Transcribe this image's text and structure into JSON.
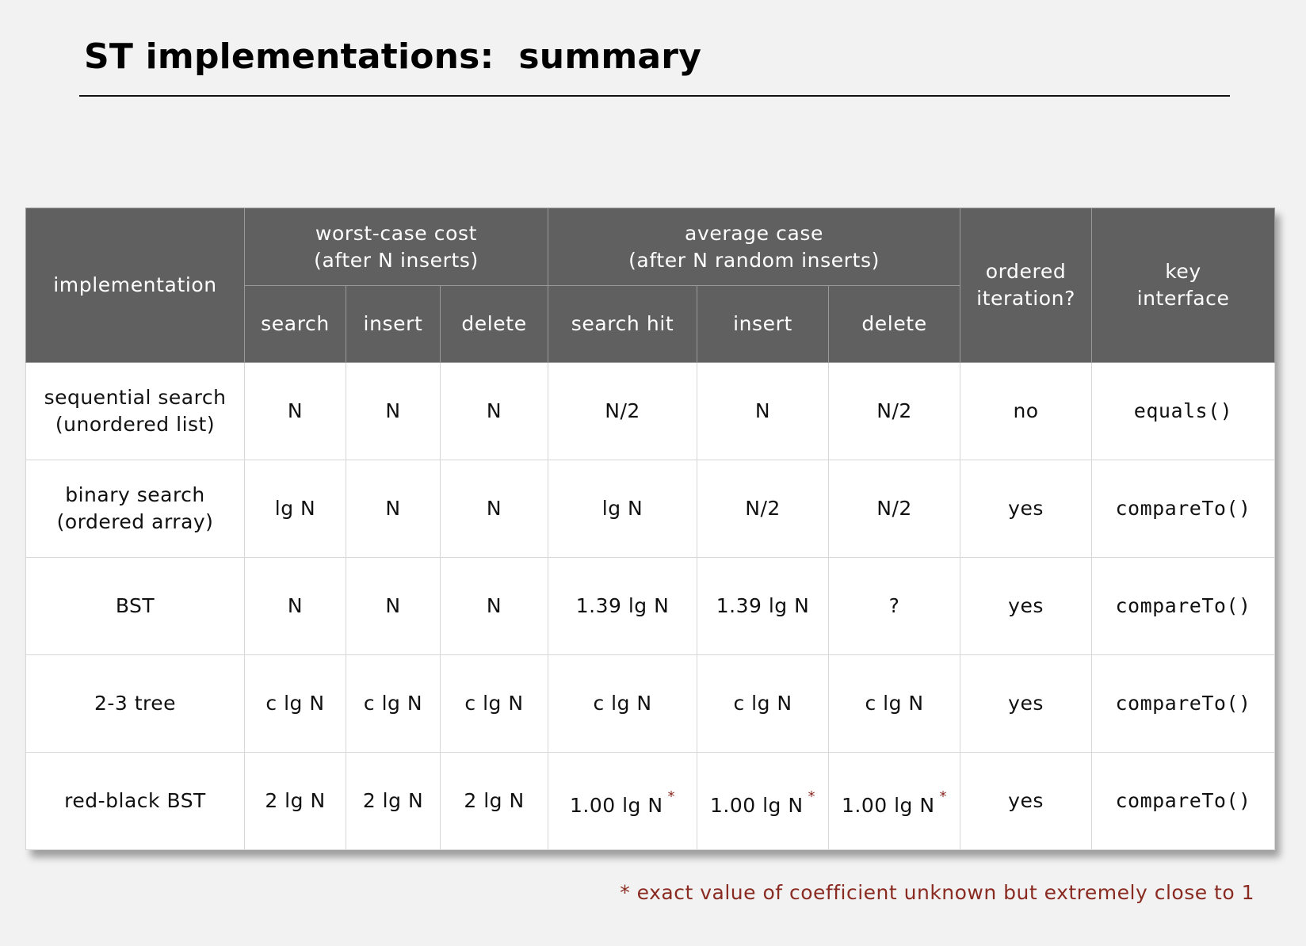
{
  "title": "ST implementations:  summary",
  "table": {
    "header": {
      "implementation": "implementation",
      "worst_case": "worst-case cost\n(after N inserts)",
      "average_case": "average case\n(after N random inserts)",
      "ordered_iteration": "ordered\niteration?",
      "key_interface": "key\ninterface",
      "worst_cols": [
        "search",
        "insert",
        "delete"
      ],
      "avg_cols": [
        "search hit",
        "insert",
        "delete"
      ]
    },
    "rows": [
      {
        "implementation": "sequential search\n(unordered list)",
        "worst": [
          "N",
          "N",
          "N"
        ],
        "avg": [
          "N/2",
          "N",
          "N/2"
        ],
        "avg_star": [
          false,
          false,
          false
        ],
        "ordered": "no",
        "key": "equals()"
      },
      {
        "implementation": "binary search\n(ordered array)",
        "worst": [
          "lg N",
          "N",
          "N"
        ],
        "avg": [
          "lg N",
          "N/2",
          "N/2"
        ],
        "avg_star": [
          false,
          false,
          false
        ],
        "ordered": "yes",
        "key": "compareTo()"
      },
      {
        "implementation": "BST",
        "worst": [
          "N",
          "N",
          "N"
        ],
        "avg": [
          "1.39 lg N",
          "1.39 lg N",
          "?"
        ],
        "avg_star": [
          false,
          false,
          false
        ],
        "ordered": "yes",
        "key": "compareTo()"
      },
      {
        "implementation": "2-3 tree",
        "worst": [
          "c lg N",
          "c lg N",
          "c lg N"
        ],
        "avg": [
          "c lg N",
          "c lg N",
          "c lg N"
        ],
        "avg_star": [
          false,
          false,
          false
        ],
        "ordered": "yes",
        "key": "compareTo()"
      },
      {
        "implementation": "red-black BST",
        "worst": [
          "2 lg N",
          "2 lg N",
          "2 lg N"
        ],
        "avg": [
          "1.00 lg N",
          "1.00 lg N",
          "1.00 lg N"
        ],
        "avg_star": [
          true,
          true,
          true
        ],
        "ordered": "yes",
        "key": "compareTo()"
      }
    ],
    "star_mark": "*"
  },
  "footnote": "* exact value of coefficient unknown but extremely close to 1",
  "colors": {
    "header_bg": "#606060",
    "header_text": "#ffffff",
    "page_bg": "#f2f2f2",
    "footnote": "#8a2b22"
  }
}
